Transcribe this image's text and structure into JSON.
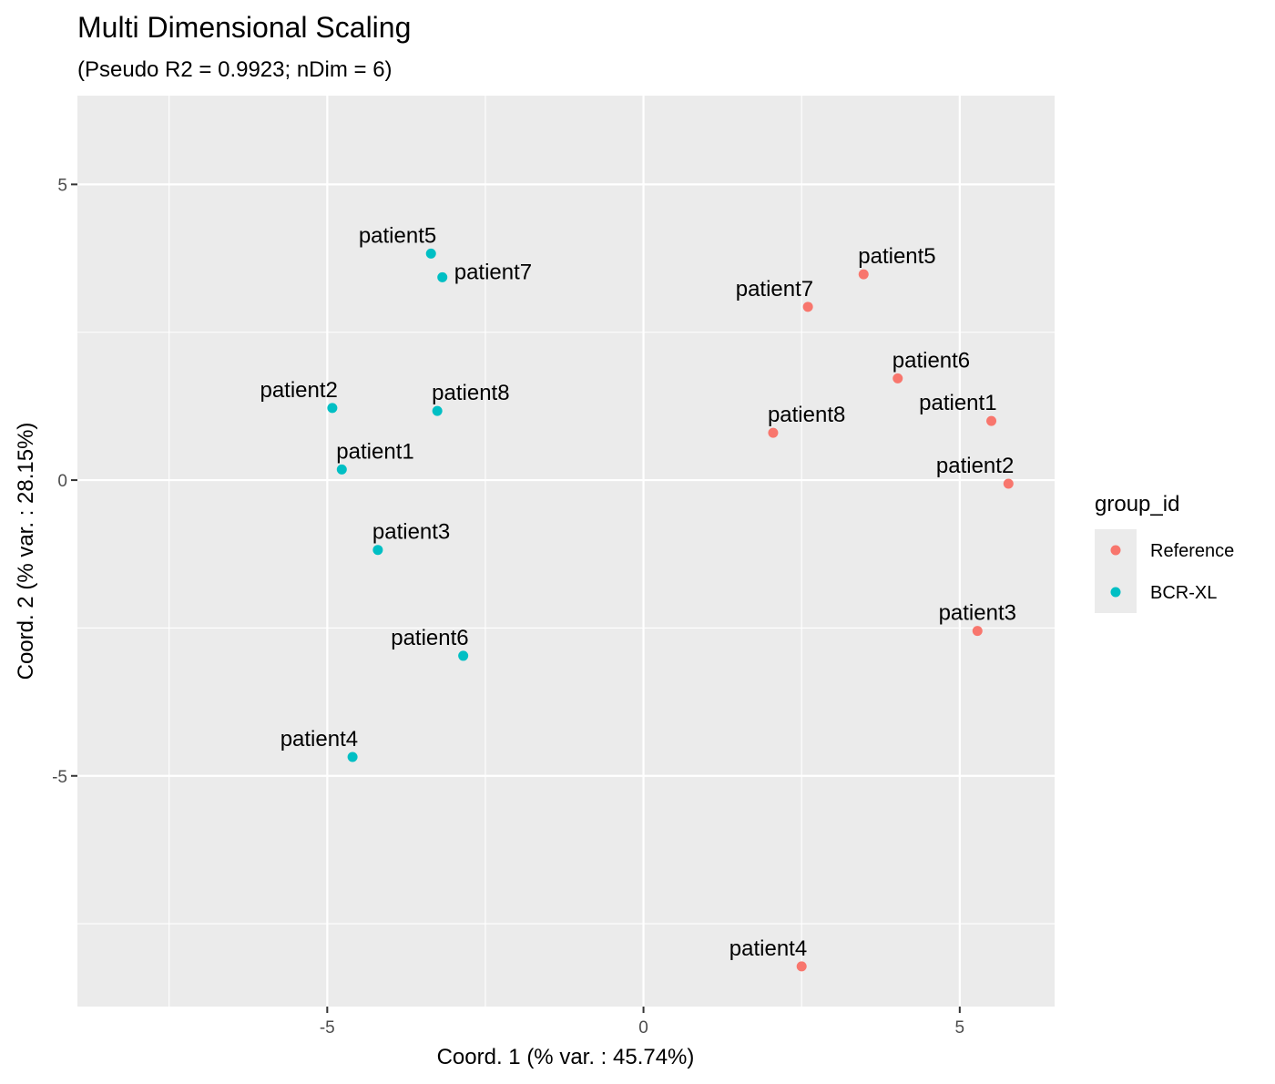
{
  "chart_data": {
    "type": "scatter",
    "title": "Multi Dimensional Scaling",
    "subtitle": "(Pseudo R2 = 0.9923; nDim = 6)",
    "xlabel": "Coord. 1 (% var. : 45.74%)",
    "ylabel": "Coord. 2 (% var. : 28.15%)",
    "xlim": [
      -8.95,
      6.5
    ],
    "ylim": [
      -8.9,
      6.5
    ],
    "x_ticks": [
      -5,
      0,
      5
    ],
    "x_tick_labels": [
      "-5",
      "0",
      "5"
    ],
    "y_ticks": [
      5,
      0,
      -5
    ],
    "y_tick_labels": [
      "5",
      "0",
      "-5"
    ],
    "x_minor_breaks": [
      -7.5,
      -2.5,
      2.5
    ],
    "y_minor_breaks": [
      2.5,
      -2.5,
      -7.5
    ],
    "grid": true,
    "panel_background": "#ebebeb",
    "grid_color": "#ffffff",
    "legend": {
      "title": "group_id",
      "placement": "right",
      "entries": [
        {
          "label": "Reference",
          "color": "#F8766D"
        },
        {
          "label": "BCR-XL",
          "color": "#00BFC4"
        }
      ]
    },
    "series": [
      {
        "name": "Reference",
        "color": "#F8766D",
        "points": [
          {
            "x": 5.5,
            "y": 1.0,
            "label": "patient1",
            "label_pos": "above-left"
          },
          {
            "x": 5.77,
            "y": -0.06,
            "label": "patient2",
            "label_pos": "above-left"
          },
          {
            "x": 5.28,
            "y": -2.55,
            "label": "patient3",
            "label_pos": "above"
          },
          {
            "x": 2.5,
            "y": -8.22,
            "label": "patient4",
            "label_pos": "above-left"
          },
          {
            "x": 3.48,
            "y": 3.48,
            "label": "patient5",
            "label_pos": "above-right"
          },
          {
            "x": 4.02,
            "y": 1.72,
            "label": "patient6",
            "label_pos": "above-right"
          },
          {
            "x": 2.6,
            "y": 2.93,
            "label": "patient7",
            "label_pos": "above-left"
          },
          {
            "x": 2.05,
            "y": 0.8,
            "label": "patient8",
            "label_pos": "above-right"
          }
        ]
      },
      {
        "name": "BCR-XL",
        "color": "#00BFC4",
        "points": [
          {
            "x": -4.77,
            "y": 0.18,
            "label": "patient1",
            "label_pos": "above-right"
          },
          {
            "x": -4.92,
            "y": 1.22,
            "label": "patient2",
            "label_pos": "above-left"
          },
          {
            "x": -4.2,
            "y": -1.18,
            "label": "patient3",
            "label_pos": "above-right"
          },
          {
            "x": -4.6,
            "y": -4.68,
            "label": "patient4",
            "label_pos": "above-left"
          },
          {
            "x": -3.36,
            "y": 3.83,
            "label": "patient5",
            "label_pos": "above-left"
          },
          {
            "x": -3.18,
            "y": 3.43,
            "label": "patient7",
            "label_pos": "right"
          },
          {
            "x": -3.26,
            "y": 1.17,
            "label": "patient8",
            "label_pos": "above-right"
          },
          {
            "x": -2.85,
            "y": -2.97,
            "label": "patient6",
            "label_pos": "above-left"
          }
        ]
      }
    ]
  }
}
